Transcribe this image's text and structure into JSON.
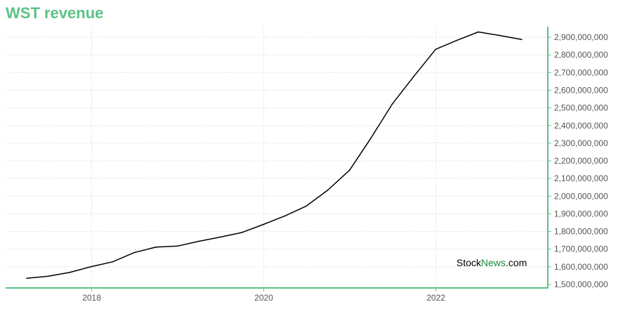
{
  "chart_data": {
    "type": "line",
    "title": "WST revenue",
    "xlabel": "",
    "ylabel": "",
    "x_ticks": [
      "2018",
      "2020",
      "2022"
    ],
    "x_tick_values": [
      2018.0,
      2020.0,
      2022.0
    ],
    "xlim": [
      2017.0,
      2023.3
    ],
    "ylim": [
      1480000000,
      2960000000
    ],
    "y_ticks": [
      1500000000,
      1600000000,
      1700000000,
      1800000000,
      1900000000,
      2000000000,
      2100000000,
      2200000000,
      2300000000,
      2400000000,
      2500000000,
      2600000000,
      2700000000,
      2800000000,
      2900000000
    ],
    "y_tick_labels": [
      "1,500,000,000",
      "1,600,000,000",
      "1,700,000,000",
      "1,800,000,000",
      "1,900,000,000",
      "2,000,000,000",
      "2,100,000,000",
      "2,200,000,000",
      "2,300,000,000",
      "2,400,000,000",
      "2,500,000,000",
      "2,600,000,000",
      "2,700,000,000",
      "2,800,000,000",
      "2,900,000,000"
    ],
    "grid": true,
    "y_axis_position": "right",
    "series": [
      {
        "color": "#000000",
        "x": [
          "2017-03-31",
          "2017-06-30",
          "2017-09-30",
          "2017-12-31",
          "2018-03-31",
          "2018-06-30",
          "2018-09-30",
          "2018-12-31",
          "2019-03-31",
          "2019-06-30",
          "2019-09-30",
          "2019-12-31",
          "2020-03-31",
          "2020-06-30",
          "2020-09-30",
          "2020-12-31",
          "2021-03-31",
          "2021-06-30",
          "2021-09-30",
          "2021-12-31",
          "2022-03-31",
          "2022-06-30",
          "2022-09-30",
          "2022-12-31"
        ],
        "values": [
          1535000000,
          1546000000,
          1568000000,
          1601000000,
          1628000000,
          1680000000,
          1711000000,
          1717000000,
          1744000000,
          1768000000,
          1794000000,
          1840000000,
          1888000000,
          1944000000,
          2035000000,
          2147000000,
          2328000000,
          2522000000,
          2680000000,
          2832000000,
          2883000000,
          2930000000,
          2910000000,
          2887000000
        ]
      }
    ]
  },
  "watermark": {
    "prefix": "Stock",
    "accent": "News",
    "suffix": ".com"
  },
  "colors": {
    "title": "#5cc287",
    "axis": "#5cc287",
    "grid": "#a8dcc0",
    "line": "#000000"
  }
}
